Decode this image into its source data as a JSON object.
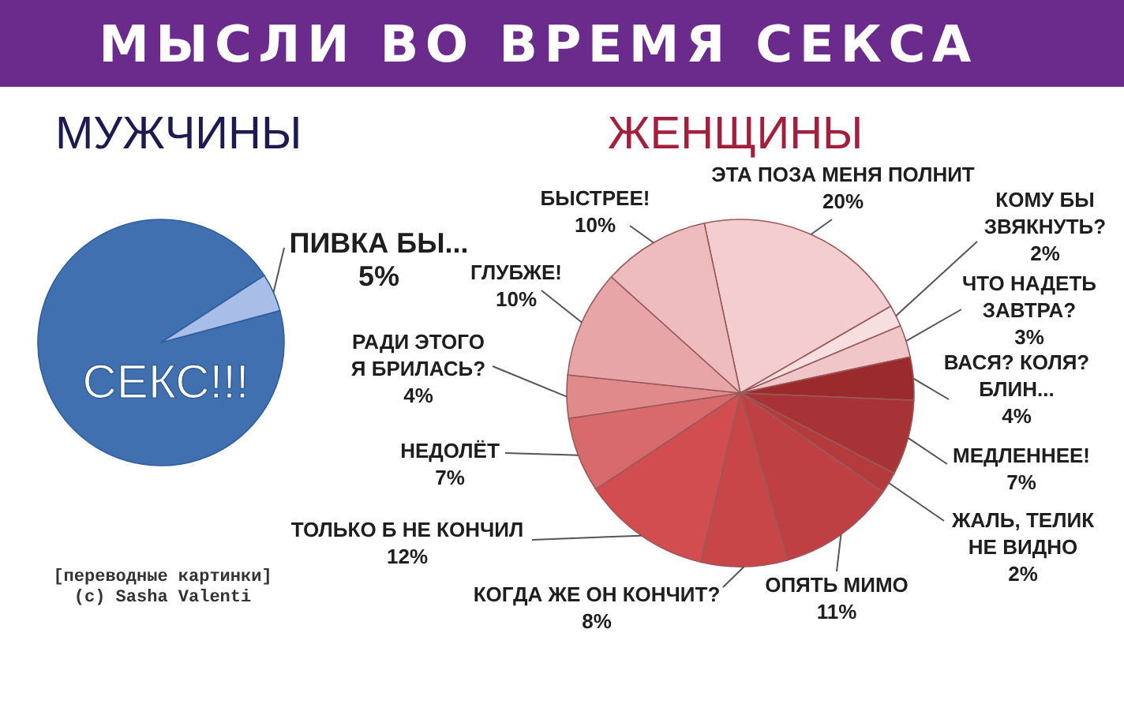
{
  "chart_data": [
    {
      "type": "other",
      "title": "МЫСЛИ ВО ВРЕМЯ СЕКСА"
    },
    {
      "type": "pie",
      "title": "МУЖЧИНЫ",
      "categories": [
        "СЕКС!!!",
        "ПИВКА БЫ..."
      ],
      "values": [
        95,
        5
      ],
      "colors": [
        "#4070b0",
        "#a8bde8"
      ],
      "value_labels": [
        null,
        "5%"
      ],
      "annotations": [
        "[переводные картинки]",
        "(c) Sasha Valenti"
      ]
    },
    {
      "type": "pie",
      "title": "ЖЕНЩИНЫ",
      "categories": [
        "ЭТА ПОЗА МЕНЯ ПОЛНИТ",
        "КОМУ БЫ ЗВЯКНУТЬ?",
        "ЧТО НАДЕТЬ ЗАВТРА?",
        "ВАСЯ? КОЛЯ? БЛИН...",
        "МЕДЛЕННЕЕ!",
        "ЖАЛЬ, ТЕЛИК НЕ ВИДНО",
        "ОПЯТЬ МИМО",
        "КОГДА ЖЕ ОН КОНЧИТ?",
        "ТОЛЬКО Б НЕ КОНЧИЛ",
        "НЕДОЛЁТ",
        "РАДИ ЭТОГО Я БРИЛАСЬ?",
        "ГЛУБЖЕ!",
        "БЫСТРЕЕ!"
      ],
      "values": [
        20,
        2,
        3,
        4,
        7,
        2,
        11,
        8,
        12,
        7,
        4,
        10,
        10
      ],
      "colors": [
        "#f3cdd0",
        "#f7dfe0",
        "#f1c6c8",
        "#9a2a2c",
        "#a83336",
        "#b43a3c",
        "#bf4042",
        "#c84548",
        "#d24d50",
        "#d96a6c",
        "#e08a8c",
        "#e8a5a8",
        "#eebcbf"
      ],
      "value_labels": [
        "20%",
        "2%",
        "3%",
        "4%",
        "7%",
        "2%",
        "11%",
        "8%",
        "12%",
        "7%",
        "4%",
        "10%",
        "10%"
      ]
    }
  ]
}
